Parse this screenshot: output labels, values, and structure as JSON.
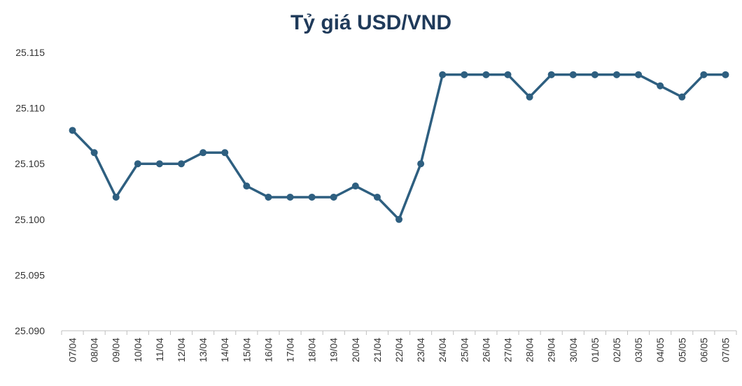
{
  "chart_data": {
    "type": "line",
    "title": "Tỷ giá USD/VND",
    "xlabel": "",
    "ylabel": "",
    "categories": [
      "07/04",
      "08/04",
      "09/04",
      "10/04",
      "11/04",
      "12/04",
      "13/04",
      "14/04",
      "15/04",
      "16/04",
      "17/04",
      "18/04",
      "19/04",
      "20/04",
      "21/04",
      "22/04",
      "23/04",
      "24/04",
      "25/04",
      "26/04",
      "27/04",
      "28/04",
      "29/04",
      "30/04",
      "01/05",
      "02/05",
      "03/05",
      "04/05",
      "05/05",
      "06/05",
      "07/05"
    ],
    "series": [
      {
        "values": [
          25108,
          25106,
          25102,
          25105,
          25105,
          25105,
          25106,
          25106,
          25103,
          25102,
          25102,
          25102,
          25102,
          25103,
          25102,
          25100,
          25105,
          25113,
          25113,
          25113,
          25113,
          25111,
          25113,
          25113,
          25113,
          25113,
          25113,
          25112,
          25111,
          25113,
          25113
        ]
      }
    ],
    "yticks": [
      "25.090",
      "25.095",
      "25.100",
      "25.105",
      "25.110",
      "25.115"
    ],
    "ylim": [
      25090,
      25115
    ],
    "grid": false,
    "colors": {
      "line": "#2e5f80",
      "title": "#1f3a5a",
      "axis": "#bfbfbf"
    }
  }
}
